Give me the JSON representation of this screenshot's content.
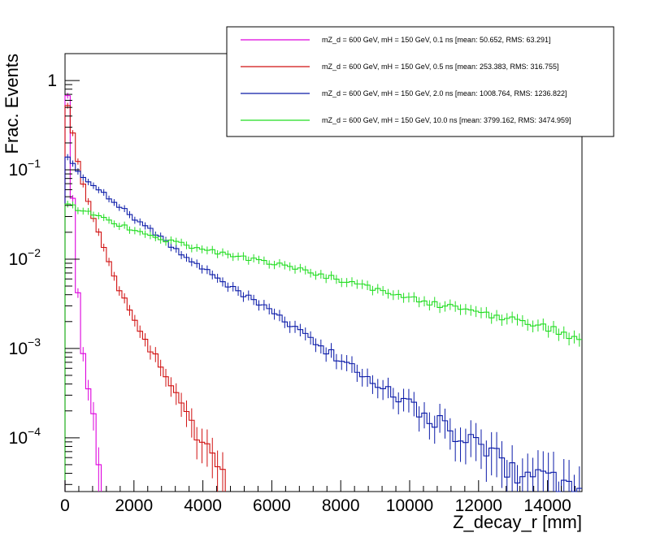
{
  "chart_data": {
    "type": "line",
    "subtype": "step-histogram",
    "title": "",
    "xlabel": "Z_decay_r [mm]",
    "ylabel": "Frac. Events",
    "xlim": [
      0,
      15000
    ],
    "ylim": [
      2.5e-05,
      2.0
    ],
    "yscale": "log",
    "bin_width": 150,
    "x_ticks": [
      {
        "value": 0,
        "label": "0"
      },
      {
        "value": 2000,
        "label": "2000"
      },
      {
        "value": 4000,
        "label": "4000"
      },
      {
        "value": 6000,
        "label": "6000"
      },
      {
        "value": 8000,
        "label": "8000"
      },
      {
        "value": 10000,
        "label": "10000"
      },
      {
        "value": 12000,
        "label": "12000"
      },
      {
        "value": 14000,
        "label": "14000"
      }
    ],
    "y_ticks": [
      {
        "value": 1,
        "base": "1",
        "exp": ""
      },
      {
        "value": 0.1,
        "base": "10",
        "exp": "−1"
      },
      {
        "value": 0.01,
        "base": "10",
        "exp": "−2"
      },
      {
        "value": 0.001,
        "base": "10",
        "exp": "−3"
      },
      {
        "value": 0.0001,
        "base": "10",
        "exp": "−4"
      }
    ],
    "legend_position": "top-right",
    "series": [
      {
        "name": "mZ_d = 600 GeV, mH = 150 GeV, 0.1 ns [mean: 50.652, RMS: 63.291]",
        "color": "#dd00dd",
        "anchors": [
          [
            0,
            1.0
          ],
          [
            100,
            0.6
          ],
          [
            200,
            0.08
          ],
          [
            300,
            0.012
          ],
          [
            400,
            0.003
          ],
          [
            500,
            0.0012
          ],
          [
            600,
            0.0005
          ],
          [
            700,
            0.0003
          ],
          [
            800,
            0.00018
          ],
          [
            900,
            0.0001
          ],
          [
            1000,
            4e-05
          ],
          [
            1050,
            3e-05
          ]
        ]
      },
      {
        "name": "mZ_d = 600 GeV, mH = 150 GeV, 0.5 ns [mean: 253.383, RMS: 316.755]",
        "color": "#d01010",
        "anchors": [
          [
            0,
            0.6
          ],
          [
            100,
            0.5
          ],
          [
            200,
            0.3
          ],
          [
            300,
            0.17
          ],
          [
            400,
            0.11
          ],
          [
            600,
            0.055
          ],
          [
            800,
            0.032
          ],
          [
            1000,
            0.018
          ],
          [
            1200,
            0.011
          ],
          [
            1400,
            0.007
          ],
          [
            1600,
            0.0045
          ],
          [
            1800,
            0.003
          ],
          [
            2000,
            0.0021
          ],
          [
            2200,
            0.0015
          ],
          [
            2600,
            0.00085
          ],
          [
            3000,
            0.00045
          ],
          [
            3400,
            0.00022
          ],
          [
            3800,
            0.00012
          ],
          [
            4200,
            8e-05
          ],
          [
            4600,
            5e-05
          ]
        ]
      },
      {
        "name": "mZ_d = 600 GeV, mH = 150 GeV, 2.0 ns [mean: 1008.764, RMS: 1236.822]",
        "color": "#0a1aa8",
        "anchors": [
          [
            0,
            0.15
          ],
          [
            200,
            0.12
          ],
          [
            400,
            0.09
          ],
          [
            700,
            0.075
          ],
          [
            1000,
            0.06
          ],
          [
            1500,
            0.042
          ],
          [
            2000,
            0.029
          ],
          [
            2500,
            0.021
          ],
          [
            3000,
            0.015
          ],
          [
            3500,
            0.0105
          ],
          [
            4000,
            0.0078
          ],
          [
            4500,
            0.0058
          ],
          [
            5000,
            0.0045
          ],
          [
            5500,
            0.0034
          ],
          [
            6000,
            0.0025
          ],
          [
            6500,
            0.0019
          ],
          [
            7000,
            0.00135
          ],
          [
            7500,
            0.001
          ],
          [
            8000,
            0.00075
          ],
          [
            8500,
            0.00055
          ],
          [
            9000,
            0.00042
          ],
          [
            9500,
            0.00032
          ],
          [
            10000,
            0.00024
          ],
          [
            10500,
            0.00018
          ],
          [
            11000,
            0.00014
          ],
          [
            11500,
            0.0001
          ],
          [
            12000,
            8e-05
          ],
          [
            12500,
            6e-05
          ],
          [
            13000,
            4.8e-05
          ],
          [
            13500,
            4e-05
          ],
          [
            14000,
            3.2e-05
          ],
          [
            15000,
            2.5e-05
          ]
        ]
      },
      {
        "name": "mZ_d = 600 GeV, mH = 150 GeV, 10.0 ns [mean: 3799.162, RMS: 3474.959]",
        "color": "#22dd22",
        "anchors": [
          [
            0,
            0.042
          ],
          [
            500,
            0.035
          ],
          [
            1000,
            0.03
          ],
          [
            1500,
            0.025
          ],
          [
            2000,
            0.021
          ],
          [
            2500,
            0.018
          ],
          [
            3000,
            0.016
          ],
          [
            3500,
            0.0145
          ],
          [
            4000,
            0.013
          ],
          [
            4500,
            0.0118
          ],
          [
            5000,
            0.0108
          ],
          [
            5500,
            0.0098
          ],
          [
            6000,
            0.009
          ],
          [
            6500,
            0.0082
          ],
          [
            7000,
            0.0074
          ],
          [
            7500,
            0.0066
          ],
          [
            8000,
            0.0058
          ],
          [
            8500,
            0.0052
          ],
          [
            9000,
            0.0046
          ],
          [
            9500,
            0.0041
          ],
          [
            10000,
            0.0037
          ],
          [
            10500,
            0.0033
          ],
          [
            11000,
            0.003
          ],
          [
            11500,
            0.0027
          ],
          [
            12000,
            0.0025
          ],
          [
            12500,
            0.0023
          ],
          [
            13000,
            0.0021
          ],
          [
            13500,
            0.0019
          ],
          [
            14000,
            0.0017
          ],
          [
            14500,
            0.0015
          ],
          [
            15000,
            0.0012
          ]
        ]
      }
    ]
  }
}
